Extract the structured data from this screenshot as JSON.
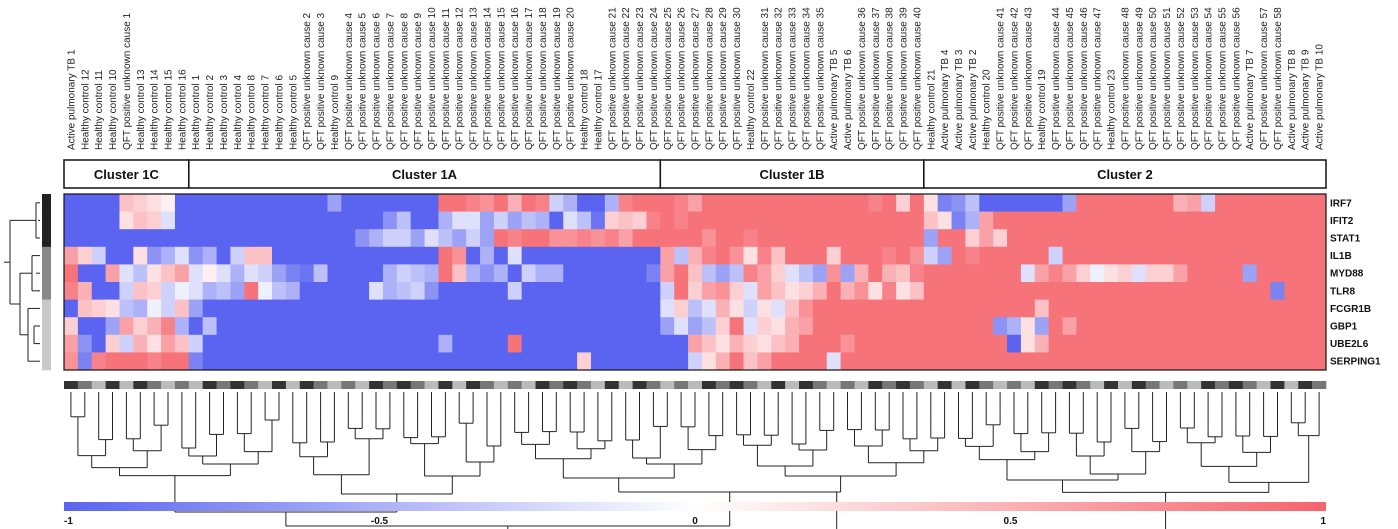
{
  "chart_data": {
    "type": "heatmap",
    "columns": [
      "Active pulmonary TB 1",
      "Healthy control 12",
      "Healthy control 11",
      "Healthy control 10",
      "QFT positive unknown cause 1",
      "Healthy control 13",
      "Healthy control 14",
      "Healthy control 15",
      "Healthy control 16",
      "Healthy control 1",
      "Healthy control 2",
      "Healthy control 3",
      "Healthy control 4",
      "Healthy control 8",
      "Healthy control 7",
      "Healthy control 6",
      "Healthy control 5",
      "QFT positive unknown cause 2",
      "QFT positive unknown cause 3",
      "Healthy control 9",
      "QFT positive unknown cause 4",
      "QFT positive unknown cause 5",
      "QFT positive unknown cause 6",
      "QFT positive unknown cause 7",
      "QFT positive unknown cause 8",
      "QFT positive unknown cause 9",
      "QFT positive unknown cause 10",
      "QFT positive unknown cause 11",
      "QFT positive unknown cause 12",
      "QFT positive unknown cause 13",
      "QFT positive unknown cause 14",
      "QFT positive unknown cause 15",
      "QFT positive unknown cause 16",
      "QFT positive unknown cause 17",
      "QFT positive unknown cause 18",
      "QFT positive unknown cause 19",
      "QFT positive unknown cause 20",
      "Healthy control 18",
      "Healthy control 17",
      "QFT positive unknown cause 21",
      "QFT positive unknown cause 22",
      "QFT positive unknown cause 23",
      "QFT positive unknown cause 24",
      "QFT positive unknown cause 25",
      "QFT positive unknown cause 26",
      "QFT positive unknown cause 27",
      "QFT positive unknown cause 28",
      "QFT positive unknown cause 29",
      "QFT positive unknown cause 30",
      "Healthy control 22",
      "QFT positive unknown cause 31",
      "QFT positive unknown cause 32",
      "QFT positive unknown cause 33",
      "QFT positive unknown cause 34",
      "QFT positive unknown cause 35",
      "Active pulmonary TB 5",
      "Active pulmonary TB 6",
      "QFT positive unknown cause 36",
      "QFT positive unknown cause 37",
      "QFT positive unknown cause 38",
      "QFT positive unknown cause 39",
      "QFT positive unknown cause 40",
      "Healthy control 21",
      "Active pulmonary TB 4",
      "Active pulmonary TB 3",
      "Active pulmonary TB 2",
      "Healthy control 20",
      "QFT positive unknown cause 41",
      "QFT positive unknown cause 42",
      "QFT positive unknown cause 43",
      "Healthy control 19",
      "QFT positive unknown cause 44",
      "QFT positive unknown cause 45",
      "QFT positive unknown cause 46",
      "QFT positive unknown cause 47",
      "Healthy control 23",
      "QFT positive unknown cause 48",
      "QFT positive unknown cause 49",
      "QFT positive unknown cause 50",
      "QFT positive unknown cause 51",
      "QFT positive unknown cause 52",
      "QFT positive unknown cause 53",
      "QFT positive unknown cause 54",
      "QFT positive unknown cause 55",
      "QFT positive unknown cause 56",
      "Active pulmonary TB 7",
      "QFT positive unknown cause 57",
      "QFT positive unknown cause 58",
      "Active pulmonary TB 8",
      "Active pulmonary TB 9",
      "Active pulmonary TB 10"
    ],
    "rows": [
      "IRF7",
      "IFIT2",
      "STAT1",
      "IL1B",
      "MYD88",
      "TLR8",
      "FCGR1B",
      "GBP1",
      "UBE2L6",
      "SERPING1"
    ],
    "clusters": [
      {
        "name": "Cluster 1C",
        "count": 9
      },
      {
        "name": "Cluster 1A",
        "count": 34
      },
      {
        "name": "Cluster 1B",
        "count": 19
      },
      {
        "name": "Cluster 2",
        "count": 29
      }
    ],
    "color_scale": {
      "min": -1,
      "max": 1,
      "ticks": [
        -1,
        -0.5,
        0,
        0.5,
        1
      ],
      "tick_labels": [
        "-1",
        "-0.5",
        "0",
        "0.5",
        "1"
      ],
      "low_color": "#5a64f0",
      "mid_color": "#ffffff",
      "high_color": "#f5636b"
    },
    "row_group_shades": [
      "#222222",
      "#222222",
      "#222222",
      "#888888",
      "#888888",
      "#888888",
      "#c8c8c8",
      "#c8c8c8",
      "#c8c8c8",
      "#c8c8c8"
    ],
    "column_shade_colors": [
      "#333333",
      "#777777",
      "#bbbbbb"
    ],
    "values": [
      [
        -1,
        -1,
        -1,
        -1,
        0.4,
        0.3,
        0.2,
        0.1,
        -1,
        -1,
        -1,
        -1,
        -1,
        -1,
        -1,
        -1,
        -1,
        -1,
        -1,
        -0.6,
        -1,
        -1,
        -1,
        -1,
        -1,
        -1,
        -1,
        0.9,
        0.9,
        0.8,
        0.7,
        0.9,
        0.5,
        0.9,
        0.8,
        -0.3,
        -0.5,
        -1,
        -1,
        -0.5,
        0.8,
        0.9,
        0.9,
        0.9,
        0.8,
        0.6,
        0.9,
        0.9,
        0.9,
        0.9,
        0.9,
        0.9,
        0.9,
        0.9,
        0.9,
        0.9,
        0.9,
        0.9,
        0.8,
        0.9,
        0.3,
        0.9,
        0.2,
        -0.8,
        -0.7,
        -0.4,
        -1,
        -1,
        -1,
        -1,
        -1,
        -1,
        -0.6,
        0.9,
        0.9,
        0.9,
        0.9,
        0.9,
        0.9,
        0.9,
        0.5,
        0.6,
        -0.3,
        0.9,
        0.9,
        0.9,
        0.9,
        0.9,
        0.9,
        0.9,
        0.9
      ],
      [
        -1,
        -1,
        -1,
        -1,
        0.2,
        0.4,
        0.3,
        -0.2,
        -1,
        -1,
        -1,
        -1,
        -1,
        -1,
        -1,
        -1,
        -1,
        -1,
        -1,
        -1,
        -1,
        -1,
        -1,
        -0.7,
        -0.4,
        -1,
        -1,
        -0.5,
        -0.2,
        -0.2,
        -0.6,
        -0.3,
        -0.6,
        -0.4,
        -0.5,
        -1,
        -0.2,
        -0.4,
        -0.9,
        0.3,
        0.4,
        0.3,
        0.8,
        0.9,
        0.8,
        0.9,
        0.9,
        0.9,
        0.9,
        0.9,
        0.9,
        0.9,
        0.9,
        0.9,
        0.9,
        0.9,
        0.9,
        0.9,
        0.9,
        0.9,
        0.9,
        0.9,
        0.4,
        0.2,
        -0.8,
        -0.5,
        0.6,
        0.9,
        0.9,
        0.9,
        0.9,
        0.9,
        0.9,
        0.9,
        0.9,
        0.9,
        0.9,
        0.9,
        0.9,
        0.9,
        0.9,
        0.9,
        0.9,
        0.9,
        0.9,
        0.9,
        0.9,
        0.9,
        0.9,
        0.9,
        0.9
      ],
      [
        -1,
        -1,
        -1,
        -1,
        -1,
        -1,
        -1,
        -1,
        -1,
        -1,
        -1,
        -1,
        -1,
        -1,
        -1,
        -1,
        -1,
        -1,
        -1,
        -1,
        -1,
        -0.7,
        -0.5,
        -0.3,
        -0.3,
        -0.6,
        -0.2,
        -0.4,
        -0.6,
        -0.3,
        -0.6,
        0.9,
        0.8,
        0.9,
        0.9,
        0.7,
        0.7,
        0.8,
        0.7,
        0.8,
        0.6,
        0.9,
        0.9,
        0.9,
        0.9,
        0.9,
        0.7,
        0.9,
        0.9,
        0.8,
        0.9,
        0.9,
        0.9,
        0.9,
        0.9,
        0.9,
        0.9,
        0.9,
        0.9,
        0.9,
        0.9,
        0.9,
        -0.6,
        0.9,
        0.9,
        0.3,
        0.6,
        0.3,
        0.9,
        0.9,
        0.9,
        0.9,
        0.9,
        0.9,
        0.9,
        0.9,
        0.9,
        0.9,
        0.9,
        0.9,
        0.9,
        0.9,
        0.9,
        0.9,
        0.9,
        0.9,
        0.9,
        0.9,
        0.9,
        0.9,
        0.9
      ],
      [
        0.6,
        0.3,
        -0.3,
        -1,
        -1,
        0.2,
        -0.7,
        -0.5,
        -0.2,
        -0.7,
        -0.5,
        -1,
        -0.3,
        0.4,
        0.4,
        -1,
        -1,
        -1,
        -1,
        -1,
        -1,
        -1,
        -1,
        -1,
        -1,
        -1,
        -1,
        0.9,
        0.7,
        -1,
        -0.5,
        -1,
        -0.2,
        -1,
        -1,
        -1,
        -1,
        -1,
        -1,
        -1,
        -1,
        -1,
        -1,
        0.6,
        -0.4,
        0.5,
        0.8,
        0.9,
        0.7,
        0.2,
        0.8,
        0.4,
        0.9,
        0.9,
        0.9,
        0.3,
        0.9,
        0.9,
        0.9,
        0.8,
        0.9,
        0.7,
        -0.3,
        -0.6,
        0.9,
        0.8,
        0.9,
        0.9,
        0.9,
        0.9,
        0.9,
        -0.3,
        0.9,
        0.9,
        0.9,
        0.9,
        0.9,
        0.9,
        0.9,
        0.9,
        0.9,
        0.9,
        0.9,
        0.9,
        0.9,
        0.9,
        0.9,
        0.9,
        0.9,
        0.9,
        0.9
      ],
      [
        0.9,
        -1,
        -1,
        0.6,
        -0.2,
        -0.4,
        0.2,
        0.4,
        0.6,
        -0.2,
        0.1,
        -0.2,
        -0.5,
        -0.2,
        -0.3,
        -0.6,
        -0.8,
        -0.9,
        -0.4,
        -1,
        -1,
        -1,
        -1,
        -0.5,
        -0.3,
        -0.4,
        -0.5,
        0.9,
        0.4,
        -0.5,
        -0.7,
        -0.5,
        -1,
        -0.3,
        -0.5,
        -0.5,
        -1,
        -1,
        -1,
        -1,
        -1,
        -1,
        -0.8,
        0.6,
        0.9,
        0.4,
        -0.4,
        -0.6,
        -0.4,
        0.8,
        0.6,
        0.3,
        -0.2,
        -0.4,
        -0.6,
        0.7,
        -0.6,
        0.5,
        0.9,
        0.5,
        0.4,
        0.8,
        0.9,
        0.9,
        0.9,
        0.9,
        0.9,
        0.9,
        0.9,
        -0.2,
        0.6,
        0.8,
        0.6,
        0.3,
        -0.1,
        0.2,
        0.3,
        -0.2,
        0.3,
        0.3,
        0.6,
        0.9,
        0.9,
        0.9,
        0.9,
        -0.6,
        0.9,
        0.9,
        0.9,
        0.9,
        0.9
      ],
      [
        0.8,
        0.5,
        -1,
        -1,
        -0.3,
        0.4,
        0.3,
        -0.3,
        -0.1,
        -0.2,
        -0.5,
        -0.4,
        -0.6,
        0.9,
        -0.1,
        -0.4,
        -0.5,
        -1,
        -1,
        -1,
        -1,
        -1,
        -0.2,
        -0.5,
        -0.4,
        -0.3,
        -0.7,
        -1,
        -1,
        -1,
        -1,
        -1,
        -0.3,
        -1,
        -1,
        -1,
        -1,
        -1,
        -1,
        -1,
        -1,
        -1,
        -1,
        -0.3,
        0.9,
        0.3,
        0.6,
        0.7,
        0.3,
        -0.2,
        0.6,
        0.4,
        0.2,
        0.3,
        0.5,
        0.9,
        0.5,
        0.7,
        0.2,
        0.8,
        0.2,
        0.4,
        0.9,
        0.9,
        0.9,
        0.9,
        0.9,
        0.9,
        0.9,
        0.9,
        0.9,
        0.9,
        0.9,
        0.9,
        0.9,
        0.9,
        0.9,
        0.9,
        0.9,
        0.9,
        0.9,
        0.9,
        0.9,
        0.9,
        0.9,
        0.9,
        0.9,
        -0.8,
        0.9,
        0.9,
        0.9
      ],
      [
        -1,
        0.4,
        0.3,
        0.2,
        -0.4,
        -0.5,
        -0.1,
        -0.3,
        0.4,
        -0.6,
        -1,
        -1,
        -1,
        -1,
        -1,
        -1,
        -1,
        -1,
        -1,
        -1,
        -1,
        -1,
        -1,
        -1,
        -1,
        -1,
        -1,
        -1,
        -1,
        -1,
        -1,
        -1,
        -1,
        -1,
        -1,
        -1,
        -1,
        -1,
        -1,
        -1,
        -1,
        -1,
        -1,
        -0.2,
        0.3,
        -0.4,
        -0.2,
        0.5,
        0.2,
        -0.3,
        0.2,
        -0.2,
        0.4,
        0.7,
        0.9,
        0.9,
        0.9,
        0.9,
        0.9,
        0.9,
        0.9,
        0.9,
        0.9,
        0.9,
        0.9,
        0.9,
        0.9,
        0.9,
        0.9,
        0.9,
        0.4,
        0.9,
        0.9,
        0.9,
        0.9,
        0.9,
        0.9,
        0.9,
        0.9,
        0.9,
        0.9,
        0.9,
        0.9,
        0.9,
        0.9,
        0.9,
        0.9,
        0.9,
        0.9,
        0.9,
        0.9
      ],
      [
        0.3,
        -1,
        -1,
        -0.6,
        0.6,
        0.3,
        0.5,
        0.8,
        -0.5,
        -1,
        -0.4,
        -1,
        -1,
        -1,
        -1,
        -1,
        -1,
        -1,
        -1,
        -1,
        -1,
        -1,
        -1,
        -1,
        -1,
        -1,
        -1,
        -1,
        -1,
        -1,
        -1,
        -1,
        -1,
        -1,
        -1,
        -1,
        -1,
        -1,
        -1,
        -1,
        -1,
        -1,
        -1,
        -0.6,
        -0.2,
        -0.6,
        -0.4,
        0.3,
        0.9,
        -0.2,
        0.3,
        0.2,
        0.5,
        0.6,
        0.9,
        0.9,
        0.9,
        0.9,
        0.9,
        0.9,
        0.9,
        0.9,
        0.9,
        0.9,
        0.9,
        0.9,
        0.9,
        -0.7,
        -0.5,
        0.2,
        -0.6,
        0.9,
        0.6,
        0.9,
        0.9,
        0.9,
        0.9,
        0.9,
        0.9,
        0.9,
        0.9,
        0.9,
        0.9,
        0.9,
        0.9,
        0.9,
        0.9,
        0.9,
        0.9,
        0.9,
        0.9
      ],
      [
        0.6,
        -0.7,
        -1,
        0.3,
        -0.3,
        0.5,
        0.2,
        0.6,
        0.4,
        -0.3,
        -1,
        -1,
        -1,
        -1,
        -1,
        -1,
        -1,
        -1,
        -1,
        -1,
        -1,
        -1,
        -1,
        -1,
        -1,
        -1,
        -1,
        -0.5,
        -1,
        -1,
        -1,
        -1,
        0.9,
        -1,
        -1,
        -1,
        -1,
        -1,
        -1,
        -1,
        -1,
        -1,
        -1,
        -1,
        -1,
        0.6,
        0.4,
        0.2,
        0.5,
        0.3,
        0.2,
        0.4,
        0.5,
        0.9,
        0.9,
        0.9,
        0.7,
        0.9,
        0.9,
        0.9,
        0.9,
        0.9,
        0.9,
        0.9,
        0.9,
        0.9,
        0.9,
        0.9,
        -1,
        0.2,
        0.5,
        0.9,
        0.9,
        0.9,
        0.9,
        0.9,
        0.9,
        0.9,
        0.9,
        0.9,
        0.9,
        0.9,
        0.9,
        0.9,
        0.9,
        0.9,
        0.9,
        0.9,
        0.9,
        0.9,
        0.9
      ],
      [
        0.7,
        -0.8,
        0.8,
        0.9,
        0.9,
        0.9,
        0.8,
        0.9,
        0.9,
        -0.8,
        -1,
        -1,
        -1,
        -1,
        -1,
        -1,
        -1,
        -1,
        -1,
        -1,
        -1,
        -1,
        -1,
        -1,
        -1,
        -1,
        -1,
        -1,
        -1,
        -1,
        -1,
        -1,
        -1,
        -1,
        -1,
        -1,
        -1,
        0.3,
        -1,
        -1,
        -1,
        -1,
        -1,
        -1,
        -1,
        -0.3,
        0.2,
        0.5,
        0.9,
        0.4,
        0.6,
        0.9,
        0.9,
        0.9,
        0.9,
        -0.2,
        0.9,
        0.9,
        0.9,
        0.9,
        0.9,
        0.9,
        0.9,
        0.9,
        0.9,
        0.9,
        0.9,
        0.9,
        0.9,
        0.9,
        0.9,
        0.9,
        0.9,
        0.9,
        0.9,
        0.9,
        0.9,
        0.9,
        0.9,
        0.9,
        0.9,
        0.9,
        0.9,
        0.9,
        0.9,
        0.9,
        0.9,
        0.9,
        0.9,
        0.9,
        0.9
      ]
    ]
  }
}
